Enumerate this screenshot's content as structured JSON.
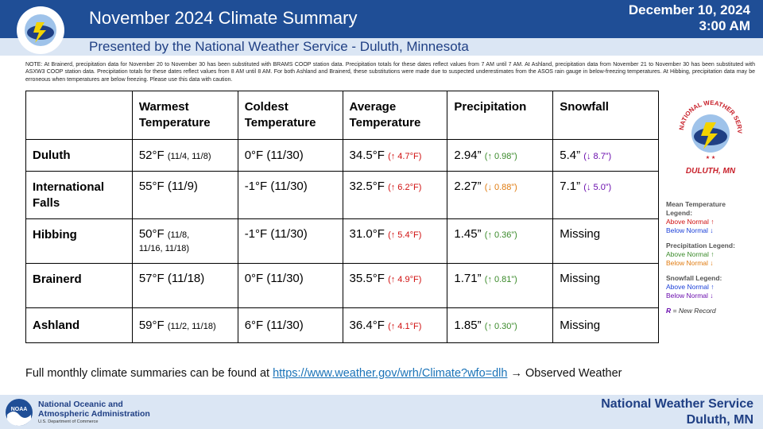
{
  "header": {
    "title": "November 2024 Climate Summary",
    "subtitle": "Presented by the National Weather Service - Duluth, Minnesota",
    "date_line1": "December 10, 2024",
    "date_line2": "3:00 AM"
  },
  "logo": {
    "arc_text": "NATIONAL WEATHER SERVICE",
    "place": "DULUTH, MN"
  },
  "note": "NOTE: At Brainerd, precipitation data for November 20 to November 30 has been substituted with BRAMS COOP station data. Precipitation totals for these dates reflect values from 7 AM until 7 AM. At Ashland, precipitation data from November 21 to November 30 has been substituted with ASXW3 COOP station data. Precipitation totals for these dates reflect values from 8 AM until 8 AM. For both Ashland and Brainerd, these substitutions were made due to suspected underestimates from the ASOS rain gauge in below-freezing temperatures. At Hibbing, precipitation data may be erroneous when temperatures are below freezing. Please use this data with caution.",
  "table": {
    "headers": {
      "warm_l1": "Warmest",
      "warm_l2": "Temperature",
      "cold_l1": "Coldest",
      "cold_l2": "Temperature",
      "avg_l1": "Average",
      "avg_l2": "Temperature",
      "precip": "Precipitation",
      "snow": "Snowfall"
    },
    "rows": [
      {
        "station": "Duluth",
        "warm": "52°F",
        "warm_dates": "(11/4, 11/8)",
        "cold": "0°F (11/30)",
        "avg": "34.5°F",
        "avg_dep": "(↑ 4.7°F)",
        "precip": "2.94”",
        "precip_dep": "(↑ 0.98”)",
        "snow": "5.4”",
        "snow_dep": "(↓ 8.7”)"
      },
      {
        "station_l1": "International",
        "station_l2": "Falls",
        "warm": "55°F (11/9)",
        "cold": "-1°F (11/30)",
        "avg": "32.5°F",
        "avg_dep": "(↑ 6.2°F)",
        "precip": "2.27”",
        "precip_dep": "(↓ 0.88”)",
        "snow": "7.1”",
        "snow_dep": "(↓ 5.0”)"
      },
      {
        "station": "Hibbing",
        "warm": "50°F",
        "warm_dates_l1": "(11/8,",
        "warm_dates_l2": "11/16, 11/18)",
        "cold": "-1°F (11/30)",
        "avg": "31.0°F",
        "avg_dep": "(↑ 5.4°F)",
        "precip": "1.45”",
        "precip_dep": "(↑ 0.36”)",
        "snow": "Missing"
      },
      {
        "station": "Brainerd",
        "warm": "57°F (11/18)",
        "cold": "0°F (11/30)",
        "avg": "35.5°F",
        "avg_dep": "(↑ 4.9°F)",
        "precip": "1.71”",
        "precip_dep": "(↑ 0.81”)",
        "snow": "Missing"
      },
      {
        "station": "Ashland",
        "warm": "59°F",
        "warm_dates": "(11/2, 11/18)",
        "cold": "6°F (11/30)",
        "avg": "36.4°F",
        "avg_dep": "(↑ 4.1°F)",
        "precip": "1.85”",
        "precip_dep": "(↑ 0.30”)",
        "snow": "Missing"
      }
    ]
  },
  "legend": {
    "mean_title_l1": "Mean Temperature",
    "mean_title_l2": "Legend:",
    "mean_above": "Above Normal ↑",
    "mean_below": "Below Normal ↓",
    "precip_title": "Precipitation Legend:",
    "precip_above": "Above Normal ↑",
    "precip_below": "Below Normal ↓",
    "snow_title": "Snowfall Legend:",
    "snow_above": "Above Normal ↑",
    "snow_below": "Below Normal ↓",
    "record_symbol": "R",
    "record_text": "= New Record"
  },
  "footer": {
    "text": "Full monthly climate summaries can be found at",
    "link": "https://www.weather.gov/wrh/Climate?wfo=dlh",
    "after": "→ Observed Weather"
  },
  "bottom": {
    "noaa_l1": "National Oceanic and",
    "noaa_l2": "Atmospheric Administration",
    "noaa_dept": "U.S. Department of Commerce",
    "noaa_logo_text": "NOAA",
    "nws_l1": "National Weather Service",
    "nws_l2": "Duluth, MN"
  },
  "colors": {
    "header_blue": "#1f4e96",
    "sub_bar": "#dbe6f4",
    "temp_above": "#d01010",
    "temp_below_legend": "#1a3fd8",
    "snow_below": "#6a0dad",
    "precip_above": "#3a8a2a",
    "precip_below": "#e07b10",
    "link": "#1a73b8"
  }
}
